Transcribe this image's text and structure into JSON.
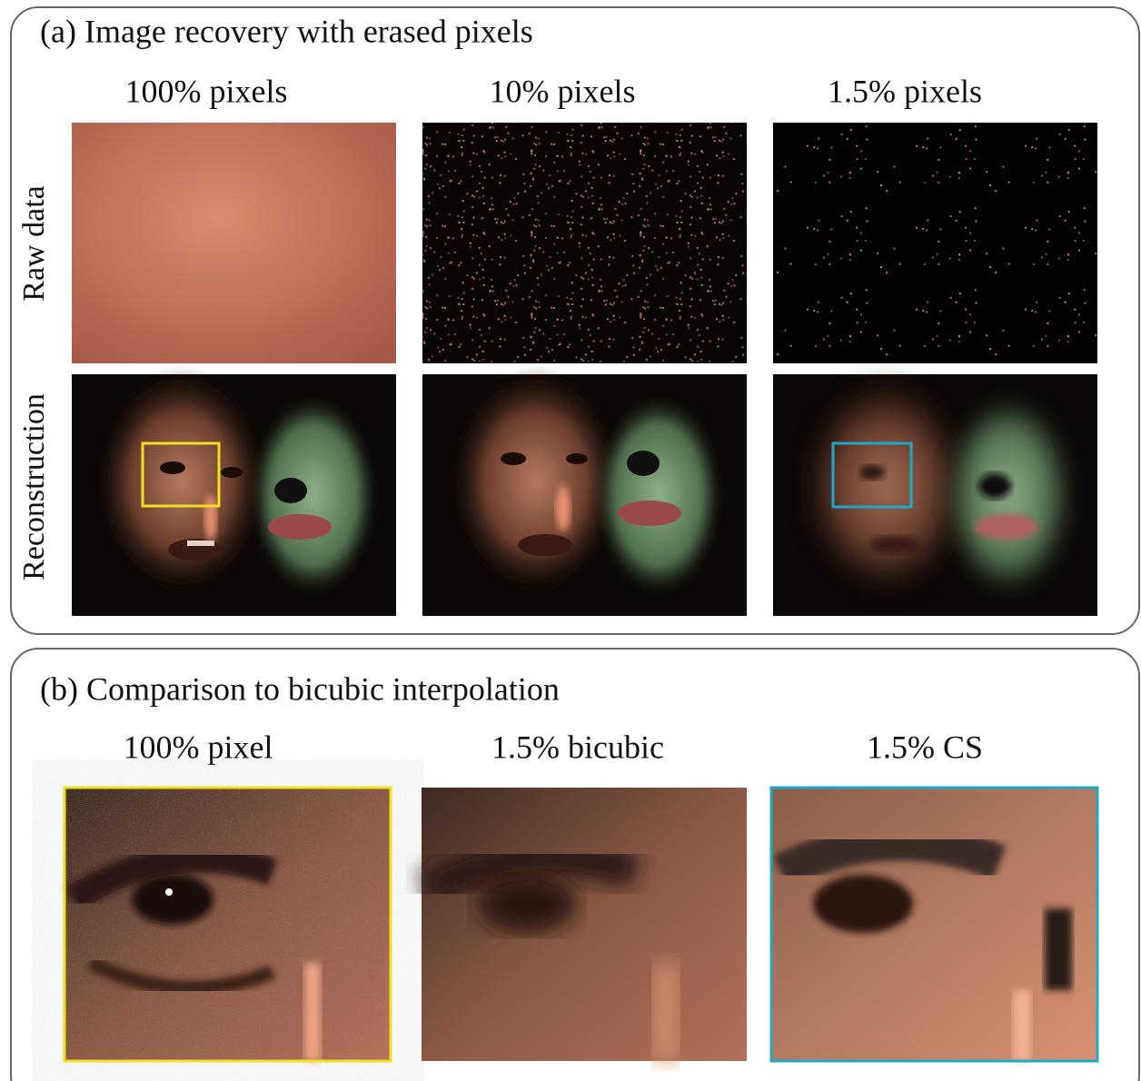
{
  "panels": [
    {
      "title": "(a) Image recovery with erased pixels",
      "column_headers": [
        "100% pixels",
        "10% pixels",
        "1.5% pixels"
      ],
      "row_labels": [
        "Raw data",
        "Reconstruction"
      ]
    },
    {
      "title": "(b) Comparison to bicubic interpolation",
      "column_headers": [
        "100% pixel",
        "1.5% bicubic",
        "1.5% CS"
      ]
    }
  ]
}
